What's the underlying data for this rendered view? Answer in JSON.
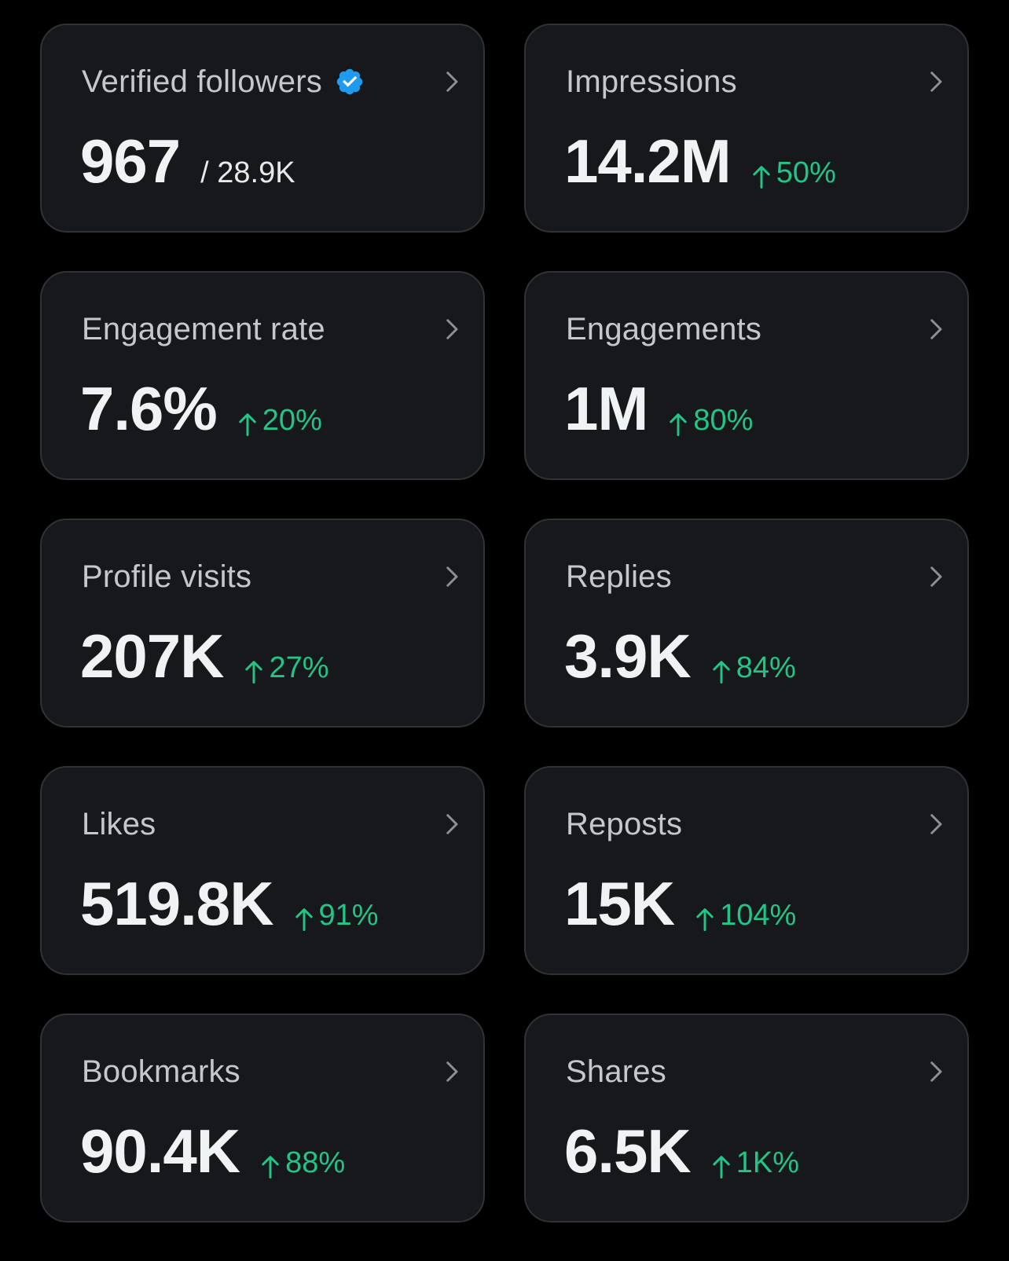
{
  "colors": {
    "background": "#000000",
    "card_background": "#16181c",
    "card_border": "#2f3336",
    "label": "#c4c8cc",
    "value": "#eff3f4",
    "positive": "#22c586",
    "verified_badge": "#1d9bf0"
  },
  "icons": {
    "chevron": "chevron-right-icon",
    "verified": "verified-badge-icon",
    "trend": "arrow-up-icon"
  },
  "cards": [
    {
      "label": "Verified followers",
      "value": "967",
      "sub": "/ 28.9K",
      "change": ""
    },
    {
      "label": "Impressions",
      "value": "14.2M",
      "sub": "",
      "change": "50%"
    },
    {
      "label": "Engagement rate",
      "value": "7.6%",
      "sub": "",
      "change": "20%"
    },
    {
      "label": "Engagements",
      "value": "1M",
      "sub": "",
      "change": "80%"
    },
    {
      "label": "Profile visits",
      "value": "207K",
      "sub": "",
      "change": "27%"
    },
    {
      "label": "Replies",
      "value": "3.9K",
      "sub": "",
      "change": "84%"
    },
    {
      "label": "Likes",
      "value": "519.8K",
      "sub": "",
      "change": "91%"
    },
    {
      "label": "Reposts",
      "value": "15K",
      "sub": "",
      "change": "104%"
    },
    {
      "label": "Bookmarks",
      "value": "90.4K",
      "sub": "",
      "change": "88%"
    },
    {
      "label": "Shares",
      "value": "6.5K",
      "sub": "",
      "change": "1K%"
    }
  ]
}
